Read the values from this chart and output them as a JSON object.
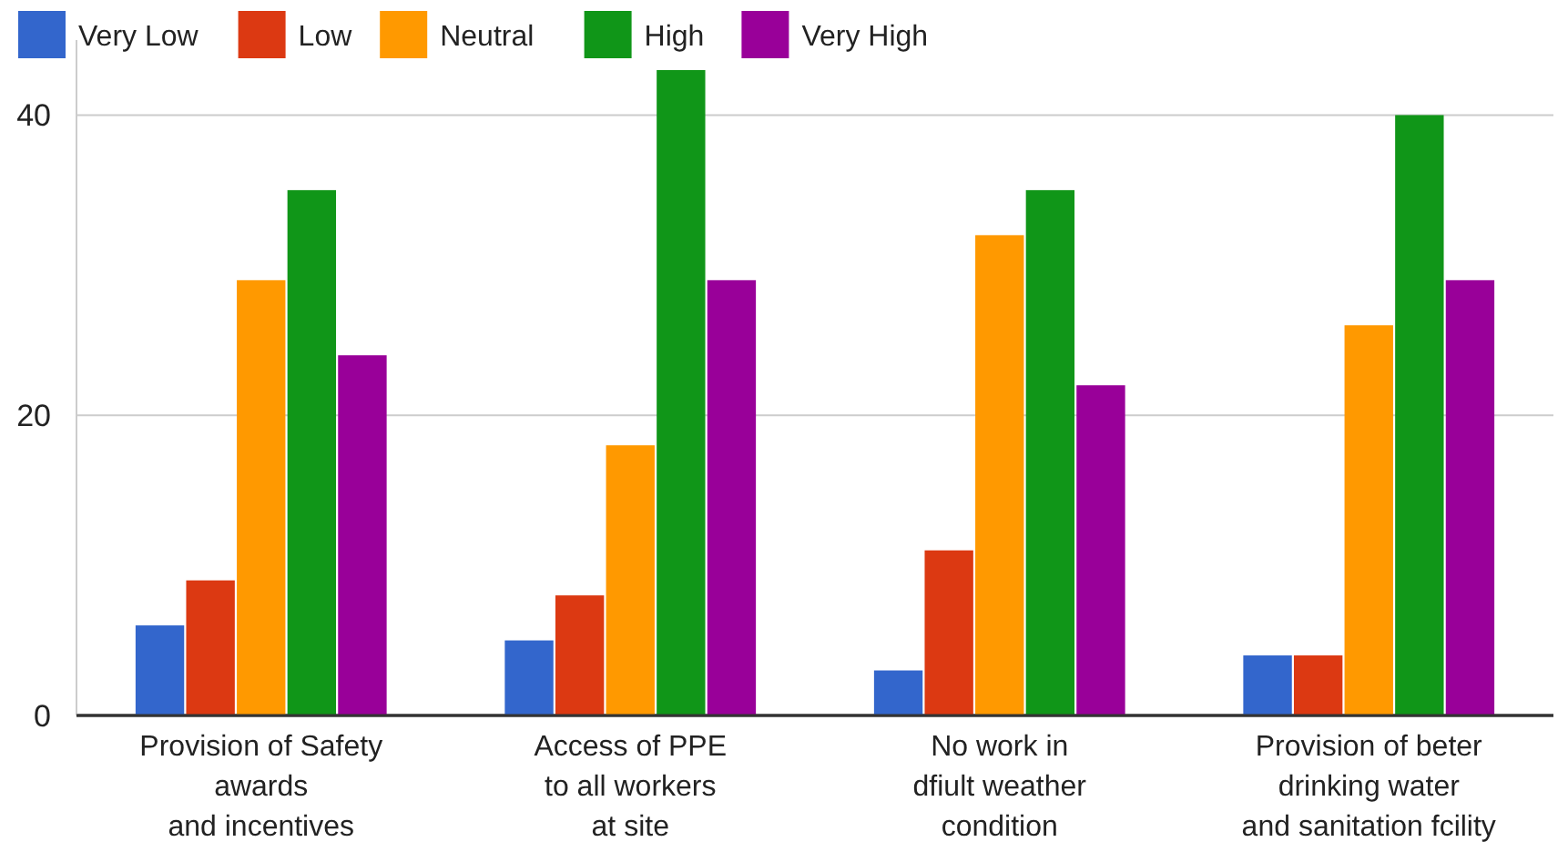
{
  "chart_data": {
    "type": "bar",
    "categories": [
      "Provision of Safety\nawards\nand incentives",
      "Access of PPE\nto all workers\nat site",
      "No work in\ndfiult weather\ncondition",
      "Provision of beter\ndrinking water\nand sanitation fcility"
    ],
    "series": [
      {
        "name": "Very Low",
        "color": "#3366cc",
        "values": [
          6,
          5,
          3,
          4
        ]
      },
      {
        "name": "Low",
        "color": "#dc3912",
        "values": [
          9,
          8,
          11,
          4
        ]
      },
      {
        "name": "Neutral",
        "color": "#ff9900",
        "values": [
          29,
          18,
          32,
          26
        ]
      },
      {
        "name": "High",
        "color": "#109618",
        "values": [
          35,
          43,
          35,
          40
        ]
      },
      {
        "name": "Very High",
        "color": "#990099",
        "values": [
          24,
          29,
          22,
          29
        ]
      }
    ],
    "ylim": [
      0,
      45
    ],
    "yticks": [
      0,
      20,
      40
    ],
    "grid": "y",
    "legend": "top left"
  }
}
